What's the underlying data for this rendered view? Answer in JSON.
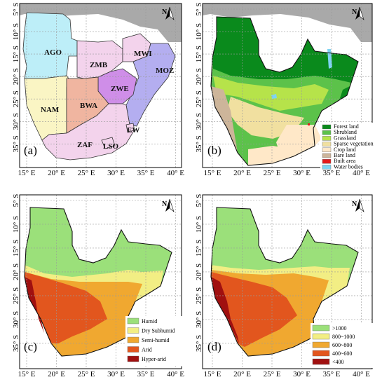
{
  "panels": [
    {
      "id": "a",
      "label": "(a)",
      "countries": [
        "AGO",
        "ZMB",
        "MWI",
        "MOZ",
        "ZWE",
        "NAM",
        "BWA",
        "ZAF",
        "LSO",
        "EW"
      ]
    },
    {
      "id": "b",
      "label": "(b)",
      "legend": [
        {
          "label": "Forest land",
          "color": "#0a8a1c"
        },
        {
          "label": "Shrubland",
          "color": "#5cc24a"
        },
        {
          "label": "Grassland",
          "color": "#b6e34a"
        },
        {
          "label": "Sparse vegetation",
          "color": "#f1e0a0"
        },
        {
          "label": "Crop land",
          "color": "#ffe8c8"
        },
        {
          "label": "Bare land",
          "color": "#cdb59a"
        },
        {
          "label": "Built area",
          "color": "#e31a1c"
        },
        {
          "label": "Water bodies",
          "color": "#7fd4f2"
        }
      ]
    },
    {
      "id": "c",
      "label": "(c)",
      "legend": [
        {
          "label": "Humid",
          "color": "#9be07a"
        },
        {
          "label": "Dry Subhumid",
          "color": "#f2ee84"
        },
        {
          "label": "Semi-humid",
          "color": "#f0a830"
        },
        {
          "label": "Arid",
          "color": "#e2561e"
        },
        {
          "label": "Hyper-arid",
          "color": "#a01010"
        }
      ]
    },
    {
      "id": "d",
      "label": "(d)",
      "legend": [
        {
          "label": ">1000",
          "color": "#9be07a"
        },
        {
          "label": "800~1000",
          "color": "#f2ee84"
        },
        {
          "label": "600~800",
          "color": "#f0a830"
        },
        {
          "label": "400~600",
          "color": "#e2561e"
        },
        {
          "label": "<400",
          "color": "#a01010"
        }
      ]
    }
  ],
  "axes": {
    "x_ticks": [
      "15° E",
      "20° E",
      "25° E",
      "30° E",
      "35° E",
      "40° E"
    ],
    "y_ticks": [
      "5° S",
      "10° S",
      "15° S",
      "20° S",
      "25° S",
      "30° S",
      "35° S"
    ]
  },
  "north_arrow": "N",
  "colors": {
    "ocean": "#ffffff",
    "land_outside": "#a9a9a9",
    "ago": "#bdeef8",
    "zmb": "#f3d3ec",
    "mwi": "#f3d3ec",
    "moz": "#b4aef0",
    "zwe": "#cf8ee8",
    "nam": "#faf5c4",
    "bwa": "#f0b5a0",
    "zaf": "#f3d3ec",
    "lso": "#f3d3ec"
  }
}
